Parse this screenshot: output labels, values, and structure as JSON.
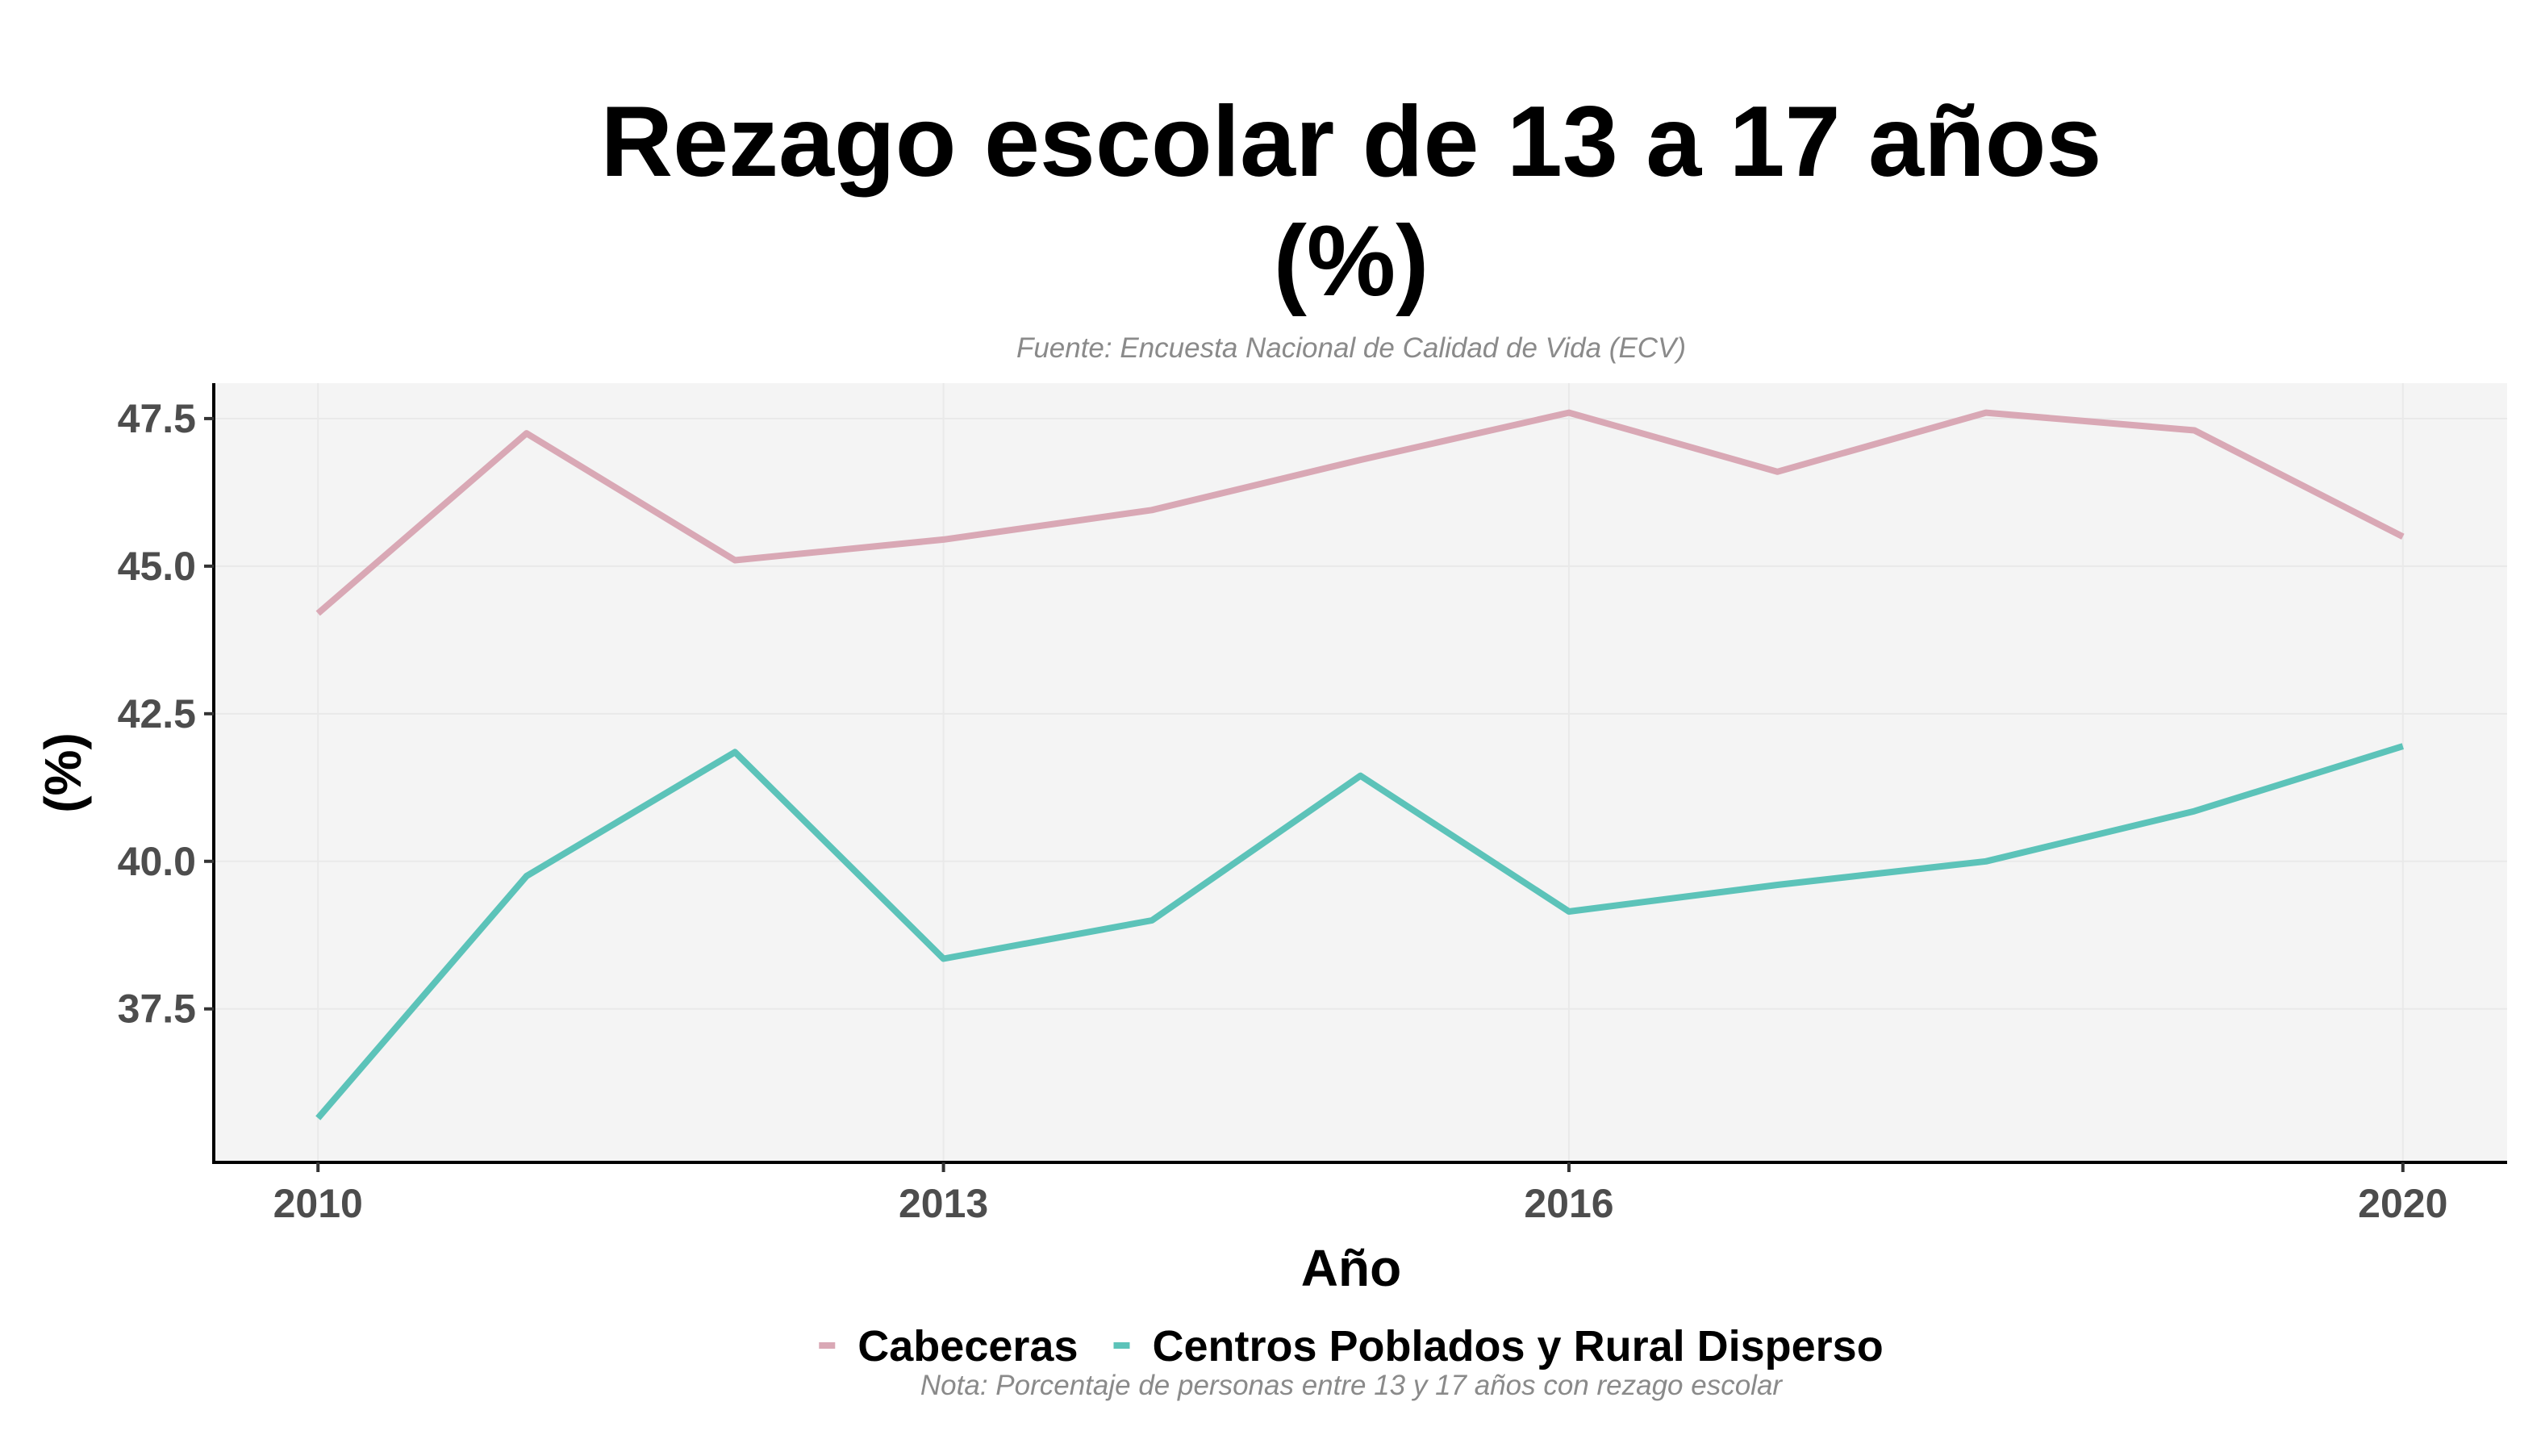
{
  "chart_data": {
    "type": "line",
    "title_lines": [
      "Rezago escolar de 13 a 17 años",
      "(%)"
    ],
    "subtitle": "Fuente: Encuesta Nacional de Calidad de Vida (ECV)",
    "caption": "Nota: Porcentaje de personas entre 13 y 17 años con rezago escolar",
    "xlabel": "Año",
    "ylabel": "(%)",
    "x": [
      2010,
      2011,
      2012,
      2013,
      2014,
      2015,
      2016,
      2017,
      2018,
      2019,
      2020
    ],
    "xlim": [
      2009.5,
      2020.5
    ],
    "ylim": [
      34.9,
      48.1
    ],
    "xticks": [
      2010,
      2013,
      2016,
      2020
    ],
    "xtick_labels": [
      "2010",
      "2013",
      "2016",
      "2020"
    ],
    "yticks": [
      37.5,
      40.0,
      42.5,
      45.0,
      47.5
    ],
    "ytick_labels": [
      "37.5",
      "40.0",
      "42.5",
      "45.0",
      "47.5"
    ],
    "grid": true,
    "legend_position": "bottom",
    "panel_background": "#f4f4f4",
    "series": [
      {
        "name": "Cabeceras",
        "color": "#d9a8b5",
        "values": [
          44.2,
          47.25,
          45.1,
          45.45,
          45.95,
          46.8,
          47.6,
          46.6,
          47.6,
          47.3,
          45.5
        ]
      },
      {
        "name": "Centros Poblados y Rural Disperso",
        "color": "#5cc3b9",
        "values": [
          35.65,
          39.75,
          41.85,
          38.35,
          39.0,
          41.45,
          39.15,
          39.6,
          40.0,
          40.85,
          41.95
        ]
      }
    ]
  }
}
